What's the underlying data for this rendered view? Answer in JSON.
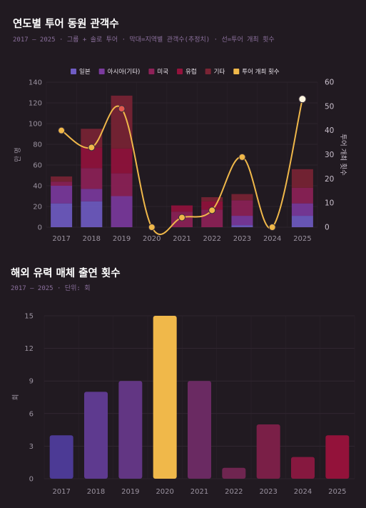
{
  "chart_data": [
    {
      "type": "bar",
      "title": "연도별 투어 동원 관객수",
      "subtitle": "2017 — 2025 · 그룹 + 솔로 투어 · 막대=지역별 관객수(추정치) · 선=투어 개최 횟수",
      "categories": [
        "2017",
        "2018",
        "2019",
        "2020",
        "2021",
        "2022",
        "2023",
        "2024",
        "2025"
      ],
      "stacked": true,
      "ylabel": "만 명",
      "ylim": [
        0,
        140
      ],
      "yticks": [
        0,
        20,
        40,
        60,
        80,
        100,
        120,
        140
      ],
      "y2label": "투어 개최 횟수",
      "y2lim": [
        0,
        60
      ],
      "y2ticks": [
        0,
        10,
        20,
        30,
        40,
        50,
        60
      ],
      "legend_position": "top",
      "grid": true,
      "series": [
        {
          "name": "일본",
          "color": "#6f5cc4",
          "values": [
            23,
            25,
            0,
            0,
            0,
            0,
            2,
            0,
            11
          ]
        },
        {
          "name": "아시아(기타)",
          "color": "#7b3a9e",
          "values": [
            17,
            12,
            30,
            0,
            0,
            0,
            9,
            0,
            12
          ]
        },
        {
          "name": "미국",
          "color": "#8e2158",
          "values": [
            4,
            20,
            22,
            0,
            15,
            17,
            15,
            0,
            15
          ]
        },
        {
          "name": "유럽",
          "color": "#94123c",
          "values": [
            0,
            20,
            24,
            0,
            6,
            8,
            0,
            0,
            0
          ]
        },
        {
          "name": "기타",
          "color": "#7a2434",
          "values": [
            5,
            18,
            51,
            0,
            0,
            4,
            6,
            0,
            18
          ]
        },
        {
          "name": "투어 개최 횟수",
          "type": "line",
          "axis": "right",
          "color": "#f0b84a",
          "values": [
            40,
            33,
            49,
            0,
            4,
            7,
            29,
            0,
            53
          ]
        }
      ]
    },
    {
      "type": "bar",
      "title": "해외 유력 매체 출연 횟수",
      "subtitle": "2017 — 2025 · 단위: 회",
      "categories": [
        "2017",
        "2018",
        "2019",
        "2020",
        "2021",
        "2022",
        "2023",
        "2024",
        "2025"
      ],
      "values": [
        4,
        8,
        9,
        15,
        9,
        1,
        5,
        2,
        4
      ],
      "colors": [
        "#4c3a95",
        "#5e3a8f",
        "#623683",
        "#f0b84a",
        "#6a2a62",
        "#6f2550",
        "#7a1f47",
        "#86183f",
        "#93123a"
      ],
      "ylabel": "회",
      "ylim": [
        0,
        15
      ],
      "yticks": [
        0,
        3,
        6,
        9,
        12,
        15
      ],
      "grid": true
    }
  ]
}
